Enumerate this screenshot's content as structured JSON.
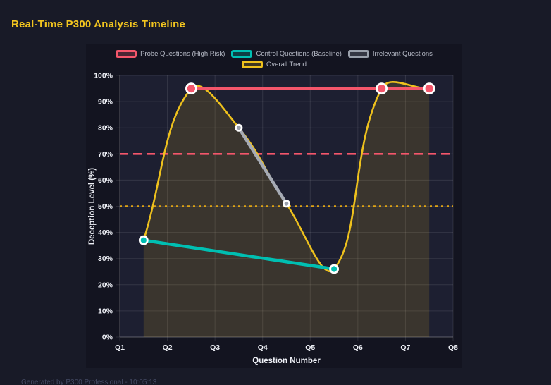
{
  "page": {
    "title": "Real-Time P300 Analysis Timeline",
    "footer": "Generated by P300 Professional - 10:05:13"
  },
  "chart_data": {
    "type": "line",
    "title": "Real-Time P300 Analysis Timeline",
    "xlabel": "Question Number",
    "ylabel": "Deception Level (%)",
    "x_range": [
      1,
      8
    ],
    "y_range": [
      0,
      100
    ],
    "x_ticks": [
      "Q1",
      "Q2",
      "Q3",
      "Q4",
      "Q5",
      "Q6",
      "Q7",
      "Q8"
    ],
    "y_ticks": [
      "0%",
      "10%",
      "20%",
      "30%",
      "40%",
      "50%",
      "60%",
      "70%",
      "80%",
      "90%",
      "100%"
    ],
    "grid": true,
    "legend_position": "top",
    "series": [
      {
        "key": "trend",
        "name": "Overall Trend",
        "render": "spline",
        "color": "#eec11d",
        "line_width": 2.6,
        "area": true,
        "area_color": "rgba(238,193,29,0.14)",
        "point_radius": 0,
        "points": [
          [
            1.5,
            37
          ],
          [
            2.5,
            95
          ],
          [
            3.5,
            80
          ],
          [
            4.5,
            51
          ],
          [
            5.5,
            26
          ],
          [
            6.5,
            95
          ],
          [
            7.5,
            95
          ]
        ]
      },
      {
        "key": "irrelevant",
        "name": "Irrelevant Questions",
        "render": "line",
        "color": "#a6abb5",
        "line_width": 4.5,
        "point_radius": 4.2,
        "point_color": "#9aa0ab",
        "point_stroke_width": 2.6,
        "points": [
          [
            3.5,
            80
          ],
          [
            4.5,
            51
          ]
        ]
      },
      {
        "key": "control",
        "name": "Control Questions (Baseline)",
        "render": "line",
        "color": "#00bfb2",
        "line_width": 4.5,
        "point_radius": 5.5,
        "point_stroke_width": 2.8,
        "points": [
          [
            1.5,
            37
          ],
          [
            5.5,
            26
          ]
        ]
      },
      {
        "key": "probe",
        "name": "Probe Questions (High Risk)",
        "render": "line",
        "color": "#f4566b",
        "line_width": 4.5,
        "point_radius": 7,
        "point_stroke_width": 2.8,
        "points": [
          [
            2.5,
            95
          ],
          [
            6.5,
            95
          ],
          [
            7.5,
            95
          ]
        ]
      }
    ],
    "thresholds": [
      {
        "y": 70,
        "color": "#f4566b",
        "dash": "12 7",
        "width": 2.6
      },
      {
        "y": 50,
        "color": "#dfa414",
        "dash": "3 5",
        "width": 2.6
      }
    ],
    "legend": {
      "rows": [
        [
          {
            "key": "probe",
            "label": "Probe Questions (High Risk)",
            "color": "#f4566b",
            "fill": "rgba(244,86,107,0.25)"
          },
          {
            "key": "control",
            "label": "Control Questions (Baseline)",
            "color": "#00bfb2",
            "fill": "rgba(0,191,178,0.25)"
          },
          {
            "key": "irrelevant",
            "label": "Irrelevant Questions",
            "color": "#9aa0ab",
            "fill": "rgba(154,160,171,0.25)"
          }
        ],
        [
          {
            "key": "trend",
            "label": "Overall Trend",
            "color": "#eec11d",
            "fill": "rgba(238,193,29,0.2)"
          }
        ]
      ]
    }
  },
  "colors": {
    "page_bg": "#181a27",
    "panel_bg": "#131420",
    "plot_bg": "#1d1f31",
    "title": "#f2c51f",
    "probe": "#f4566b",
    "control": "#00bfb2",
    "irrelevant": "#9aa0ab",
    "trend": "#eec11d",
    "threshold_gold": "#dfa414"
  }
}
